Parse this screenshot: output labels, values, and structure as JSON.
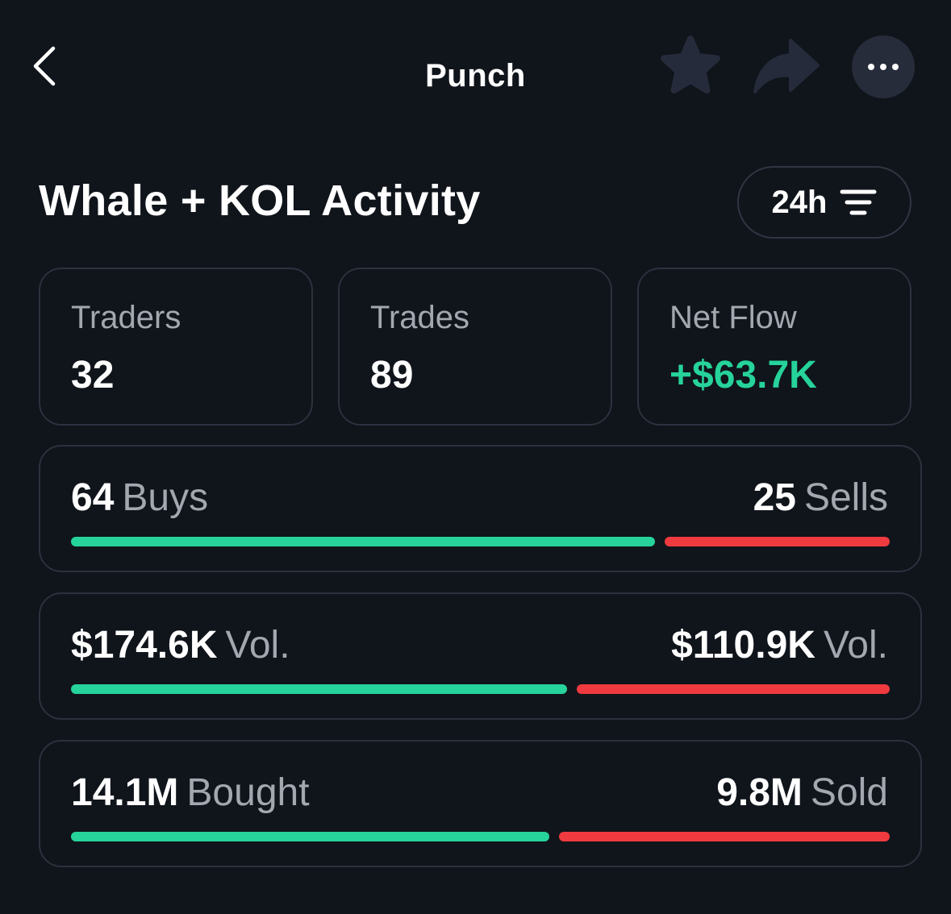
{
  "topbar": {
    "title": "Punch",
    "icons": [
      "chevron-left-icon",
      "star-icon",
      "share-icon",
      "more-icon"
    ]
  },
  "section": {
    "title": "Whale + KOL Activity",
    "period": "24h"
  },
  "stats": [
    {
      "label": "Traders",
      "value": "32"
    },
    {
      "label": "Trades",
      "value": "89"
    },
    {
      "label": "Net Flow",
      "value": "+$63.7K"
    }
  ],
  "ratios": [
    {
      "left_value": "64",
      "left_unit": "Buys",
      "right_value": "25",
      "right_unit": "Sells",
      "left_fraction": 0.719
    },
    {
      "left_value": "$174.6K",
      "left_unit": "Vol.",
      "right_value": "$110.9K",
      "right_unit": "Vol.",
      "left_fraction": 0.612
    },
    {
      "left_value": "14.1M",
      "left_unit": "Bought",
      "right_value": "9.8M",
      "right_unit": "Sold",
      "left_fraction": 0.59
    }
  ],
  "colors": {
    "background": "#10141b",
    "positive": "#26d39a",
    "negative": "#ef3a3f",
    "muted_text": "#a3a7af",
    "border": "#2b313d",
    "icon_fill": "#252b3a"
  }
}
